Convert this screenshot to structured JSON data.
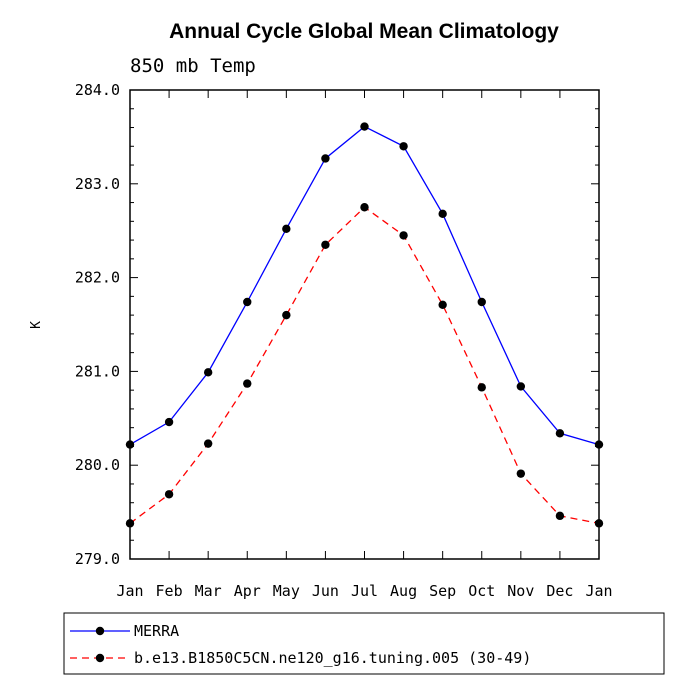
{
  "chart_data": {
    "type": "line",
    "title": "Annual Cycle Global Mean Climatology",
    "subtitle": "850 mb Temp",
    "xlabel": "",
    "ylabel": "K",
    "categories": [
      "Jan",
      "Feb",
      "Mar",
      "Apr",
      "May",
      "Jun",
      "Jul",
      "Aug",
      "Sep",
      "Oct",
      "Nov",
      "Dec",
      "Jan"
    ],
    "ylim": [
      279.0,
      284.0
    ],
    "yticks": [
      "279.0",
      "280.0",
      "281.0",
      "282.0",
      "283.0",
      "284.0"
    ],
    "grid": false,
    "legend_position": "bottom-left",
    "series": [
      {
        "name": "MERRA",
        "color": "#0000ff",
        "dash": "solid",
        "values": [
          280.22,
          280.46,
          280.99,
          281.74,
          282.52,
          283.27,
          283.61,
          283.4,
          282.68,
          281.74,
          280.84,
          280.34,
          280.22
        ]
      },
      {
        "name": "b.e13.B1850C5CN.ne120_g16.tuning.005 (30-49)",
        "color": "#ff0000",
        "dash": "dashed",
        "values": [
          279.38,
          279.69,
          280.23,
          280.87,
          281.6,
          282.35,
          282.75,
          282.45,
          281.71,
          280.83,
          279.91,
          279.46,
          279.38
        ]
      }
    ]
  }
}
